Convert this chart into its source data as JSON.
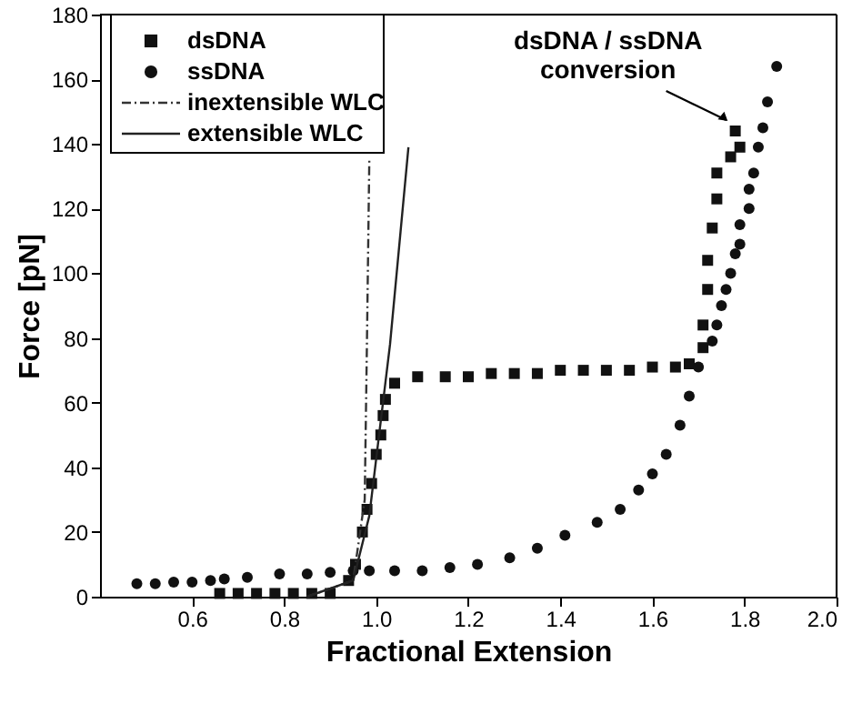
{
  "chart_data": {
    "type": "scatter",
    "xlabel": "Fractional Extension",
    "ylabel": "Force [pN]",
    "xlim": [
      0.4,
      2.0
    ],
    "xticks": [
      0.6,
      0.8,
      {
        "value": 1,
        "label": "1.0"
      },
      1.2,
      1.4,
      1.6,
      1.8,
      {
        "value": 2,
        "label": "2.0"
      }
    ],
    "ylim": [
      0,
      180
    ],
    "yticks": [
      0,
      20,
      40,
      60,
      80,
      100,
      120,
      140,
      160,
      180
    ],
    "grid": false,
    "legend": "top left",
    "series": [
      {
        "name": "dsDNA",
        "marker": "square",
        "color": "#111111",
        "x": [
          0.66,
          0.7,
          0.74,
          0.78,
          0.82,
          0.86,
          0.9,
          0.94,
          0.955,
          0.97,
          0.98,
          0.99,
          1.0,
          1.01,
          1.015,
          1.02,
          1.04,
          1.09,
          1.15,
          1.2,
          1.25,
          1.3,
          1.35,
          1.4,
          1.45,
          1.5,
          1.55,
          1.6,
          1.65,
          1.68,
          1.71,
          1.71,
          1.72,
          1.72,
          1.73,
          1.74,
          1.74,
          1.77,
          1.79,
          1.78
        ],
        "values": [
          1,
          1,
          1,
          1,
          1,
          1,
          1,
          5,
          10,
          20,
          27,
          35,
          44,
          50,
          56,
          61,
          66,
          68,
          68,
          68,
          69,
          69,
          69,
          70,
          70,
          70,
          70,
          71,
          71,
          72,
          77,
          84,
          95,
          104,
          114,
          123,
          131,
          136,
          139,
          144
        ]
      },
      {
        "name": "ssDNA",
        "marker": "circle",
        "color": "#111111",
        "x": [
          0.48,
          0.52,
          0.56,
          0.6,
          0.64,
          0.67,
          0.72,
          0.79,
          0.85,
          0.9,
          0.95,
          0.985,
          1.04,
          1.1,
          1.16,
          1.22,
          1.29,
          1.35,
          1.41,
          1.48,
          1.53,
          1.57,
          1.6,
          1.63,
          1.66,
          1.68,
          1.7,
          1.73,
          1.74,
          1.75,
          1.76,
          1.77,
          1.78,
          1.79,
          1.79,
          1.81,
          1.81,
          1.82,
          1.83,
          1.84,
          1.85,
          1.87
        ],
        "values": [
          4,
          4,
          4.5,
          4.5,
          5,
          5.5,
          6,
          7,
          7,
          7.5,
          8,
          8,
          8,
          8,
          9,
          10,
          12,
          15,
          19,
          23,
          27,
          33,
          38,
          44,
          53,
          62,
          71,
          79,
          84,
          90,
          95,
          100,
          106,
          109,
          115,
          120,
          126,
          131,
          139,
          145,
          153,
          164
        ]
      },
      {
        "name": "inextensible WLC",
        "type": "line",
        "line_style": "dashed",
        "color": "#333333",
        "x": [
          0.85,
          0.95,
          0.975,
          0.98,
          0.985
        ],
        "values": [
          0,
          5,
          30,
          80,
          135
        ]
      },
      {
        "name": "extensible WLC",
        "type": "line",
        "line_style": "solid",
        "color": "#222222",
        "x": [
          0.85,
          0.95,
          0.985,
          1.03,
          1.07
        ],
        "values": [
          0,
          5,
          25,
          78,
          139
        ]
      }
    ],
    "annotations": [
      {
        "text": "dsDNA / ssDNA\nconversion",
        "x": 1.78,
        "y": 144
      }
    ]
  }
}
